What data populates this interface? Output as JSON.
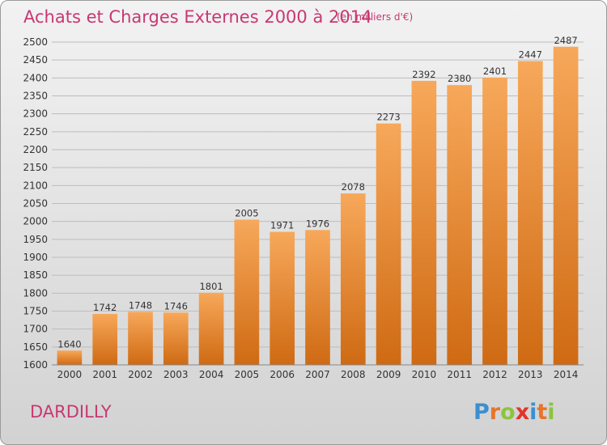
{
  "chart_data": {
    "type": "bar",
    "title": "Achats et Charges Externes 2000 à 2014",
    "subtitle": "(en milliers d'€)",
    "categories": [
      "2000",
      "2001",
      "2002",
      "2003",
      "2004",
      "2005",
      "2006",
      "2007",
      "2008",
      "2009",
      "2010",
      "2011",
      "2012",
      "2013",
      "2014"
    ],
    "values": [
      1640,
      1742,
      1748,
      1746,
      1801,
      2005,
      1971,
      1976,
      2078,
      2273,
      2392,
      2380,
      2401,
      2447,
      2487
    ],
    "ylim": [
      1600,
      2500
    ],
    "ytick_step": 50,
    "grid": true,
    "colors": {
      "bar_light": "#f7a85a",
      "bar_dark": "#cf6a13",
      "title": "#c83872"
    }
  },
  "footer": {
    "location": "DARDILLY",
    "brand": "Proxiti",
    "brand_letters": [
      {
        "ch": "P",
        "color": "#3a8fd0"
      },
      {
        "ch": "r",
        "color": "#e8742a"
      },
      {
        "ch": "o",
        "color": "#8cc43c"
      },
      {
        "ch": "x",
        "color": "#e2332a"
      },
      {
        "ch": "i",
        "color": "#3a8fd0"
      },
      {
        "ch": "t",
        "color": "#e8742a"
      },
      {
        "ch": "i",
        "color": "#8cc43c"
      }
    ]
  }
}
